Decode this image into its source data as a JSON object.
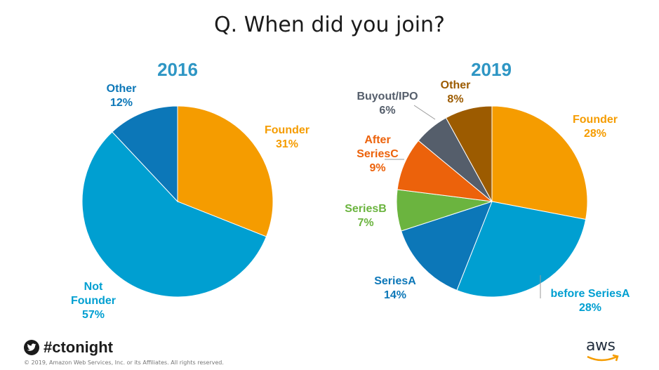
{
  "title": "Q. When did you join?",
  "chart_data": [
    {
      "type": "pie",
      "title": "2016",
      "slices": [
        {
          "label": "Founder",
          "value": 31,
          "pct": "31%",
          "color": "#f59c00"
        },
        {
          "label": "Not Founder",
          "value": 57,
          "pct": "57%",
          "color": "#009fd1"
        },
        {
          "label": "Other",
          "value": 12,
          "pct": "12%",
          "color": "#0c77b8"
        }
      ]
    },
    {
      "type": "pie",
      "title": "2019",
      "slices": [
        {
          "label": "Founder",
          "value": 28,
          "pct": "28%",
          "color": "#f59c00"
        },
        {
          "label": "before SeriesA",
          "value": 28,
          "pct": "28%",
          "color": "#009fd1"
        },
        {
          "label": "SeriesA",
          "value": 14,
          "pct": "14%",
          "color": "#0c77b8"
        },
        {
          "label": "SeriesB",
          "value": 7,
          "pct": "7%",
          "color": "#6bb43f"
        },
        {
          "label": "After SeriesC",
          "value": 9,
          "pct": "9%",
          "color": "#ec620b"
        },
        {
          "label": "Buyout/IPO",
          "value": 6,
          "pct": "6%",
          "color": "#555e6b"
        },
        {
          "label": "Other",
          "value": 8,
          "pct": "8%",
          "color": "#9c5b00"
        }
      ]
    }
  ],
  "labels_2016": {
    "founder": [
      "Founder",
      "31%"
    ],
    "not_founder": [
      "Not",
      "Founder",
      "57%"
    ],
    "other": [
      "Other",
      "12%"
    ]
  },
  "labels_2019": {
    "founder": [
      "Founder",
      "28%"
    ],
    "before_series_a": [
      "before SeriesA",
      "28%"
    ],
    "series_a": [
      "SeriesA",
      "14%"
    ],
    "series_b": [
      "SeriesB",
      "7%"
    ],
    "after_series_c": [
      "After",
      "SeriesC",
      "9%"
    ],
    "buyout": [
      "Buyout/IPO",
      "6%"
    ],
    "other": [
      "Other",
      "8%"
    ]
  },
  "footer": {
    "hashtag": "#ctonight",
    "copyright": "© 2019, Amazon Web Services,  Inc. or its Affiliates.  All rights reserved.",
    "logo_text": "aws"
  },
  "colors": {
    "orange": "#f59c00",
    "lightblue": "#009fd1",
    "blue": "#0c77b8",
    "green": "#6bb43f",
    "darkorange": "#ec620b",
    "gray": "#555e6b",
    "brown": "#9c5b00",
    "title_blue": "#2e96c4"
  }
}
